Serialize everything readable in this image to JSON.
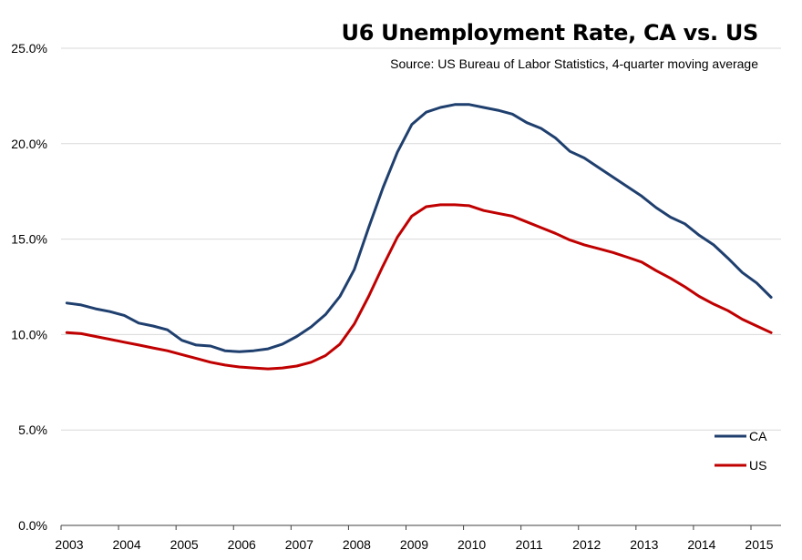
{
  "chart_data": {
    "type": "line",
    "title": "U6 Unemployment Rate, CA vs. US",
    "subtitle": "Source:  US Bureau of Labor Statistics, 4-quarter moving average",
    "xlabel": "",
    "ylabel": "",
    "ylim": [
      0,
      25
    ],
    "xlim": [
      2003,
      2015.5
    ],
    "grid": true,
    "legend_position": "bottom-right",
    "y_ticks": [
      "0.0%",
      "5.0%",
      "10.0%",
      "15.0%",
      "20.0%",
      "25.0%"
    ],
    "y_tick_values": [
      0,
      5,
      10,
      15,
      20,
      25
    ],
    "x_ticks": [
      "2003",
      "2004",
      "2005",
      "2006",
      "2007",
      "2008",
      "2009",
      "2010",
      "2011",
      "2012",
      "2013",
      "2014",
      "2015"
    ],
    "x_start": 2003.1,
    "x_step": 0.25,
    "series": [
      {
        "name": "CA",
        "color": "#1f3f6e",
        "values": [
          11.65,
          11.55,
          11.35,
          11.2,
          11.0,
          10.6,
          10.45,
          10.25,
          9.7,
          9.45,
          9.4,
          9.15,
          9.1,
          9.15,
          9.25,
          9.5,
          9.9,
          10.4,
          11.05,
          12.0,
          13.4,
          15.6,
          17.7,
          19.55,
          21.0,
          21.65,
          21.9,
          22.05,
          22.05,
          21.9,
          21.75,
          21.55,
          21.1,
          20.8,
          20.3,
          19.6,
          19.25,
          18.75,
          18.25,
          17.75,
          17.25,
          16.65,
          16.15,
          15.8,
          15.2,
          14.7,
          14.0,
          13.25,
          12.7,
          11.95
        ]
      },
      {
        "name": "US",
        "color": "#c00000",
        "values": [
          10.1,
          10.05,
          9.9,
          9.75,
          9.6,
          9.45,
          9.3,
          9.15,
          8.95,
          8.75,
          8.55,
          8.4,
          8.3,
          8.25,
          8.2,
          8.25,
          8.35,
          8.55,
          8.9,
          9.5,
          10.55,
          12.0,
          13.6,
          15.1,
          16.2,
          16.7,
          16.8,
          16.8,
          16.75,
          16.5,
          16.35,
          16.2,
          15.9,
          15.6,
          15.3,
          14.95,
          14.7,
          14.5,
          14.3,
          14.05,
          13.8,
          13.35,
          12.95,
          12.5,
          12.0,
          11.6,
          11.25,
          10.8,
          10.45,
          10.1
        ]
      }
    ]
  }
}
